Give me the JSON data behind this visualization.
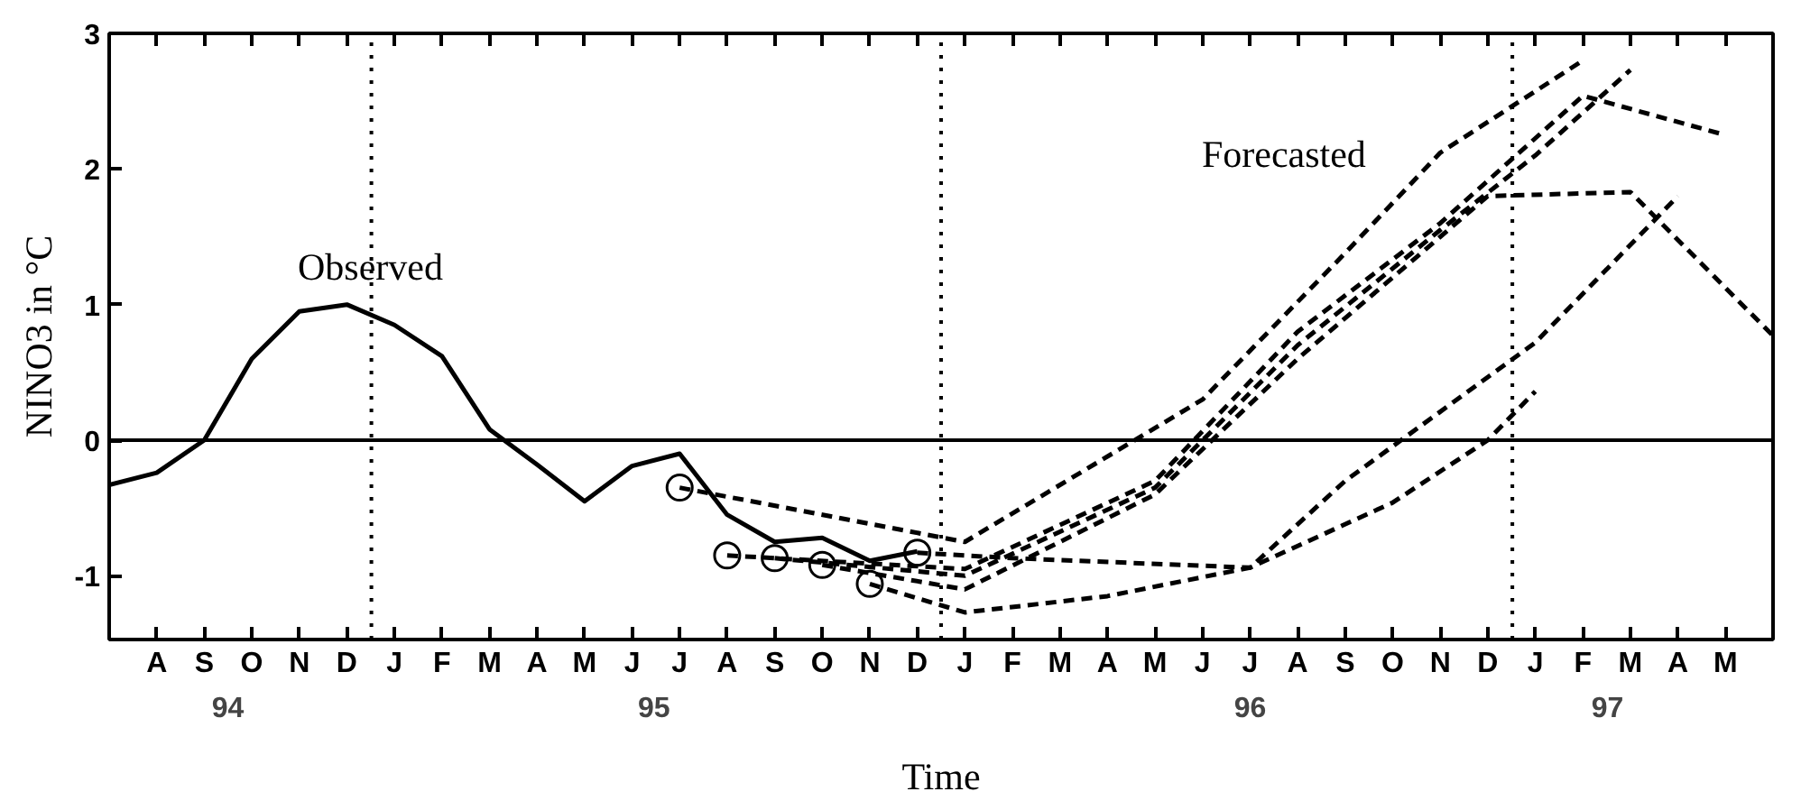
{
  "chart_data": {
    "type": "line",
    "xlabel": "Time",
    "ylabel": "NINO3 in °C",
    "categories": [
      null,
      "A",
      "S",
      "O",
      "N",
      "D",
      "J",
      "F",
      "M",
      "A",
      "M",
      "J",
      "J",
      "A",
      "S",
      "O",
      "N",
      "D",
      "J",
      "F",
      "M",
      "A",
      "M",
      "J",
      "J",
      "A",
      "S",
      "O",
      "N",
      "D",
      "J",
      "F",
      "M",
      "A",
      "M",
      null
    ],
    "ylim": [
      -1.47,
      3
    ],
    "x2lim": [
      "1994-07",
      "1997-06"
    ],
    "x2ticks": [
      {
        "value": "1994-09-15",
        "label": "94"
      },
      {
        "value": "1995-06-15",
        "label": "95"
      },
      {
        "value": "1996-07",
        "label": "96"
      },
      {
        "value": "1997-02-15",
        "label": "97"
      }
    ],
    "yticks": [
      -1,
      0,
      1,
      2,
      3
    ],
    "ref_lines": [
      {
        "axis": "y",
        "value": 0,
        "color": "#000000",
        "line_style": "solid"
      }
    ],
    "annotations": [
      "Observed",
      "Forecasted"
    ],
    "series": [
      {
        "color": "#000000",
        "line_style": "solid",
        "values": [
          -0.33,
          -0.24,
          0.0,
          0.6,
          0.95,
          1.0,
          0.85,
          0.62,
          0.08,
          -0.18,
          -0.45,
          -0.19,
          -0.1,
          -0.55,
          -0.75,
          -0.72,
          -0.89,
          -0.82,
          null,
          null,
          null,
          null,
          null,
          null,
          null,
          null,
          null,
          null,
          null,
          null,
          null,
          null,
          null,
          null,
          null,
          null
        ]
      },
      {
        "color": "#000000",
        "line_style": "dashed",
        "values": [
          null,
          null,
          null,
          null,
          null,
          null,
          null,
          null,
          null,
          null,
          null,
          null,
          -0.35,
          null,
          null,
          null,
          null,
          null,
          -0.75,
          null,
          null,
          null,
          null,
          0.3,
          null,
          null,
          1.38,
          null,
          2.12,
          null,
          null,
          2.8,
          null,
          null,
          null,
          null
        ]
      },
      {
        "color": "#000000",
        "line_style": "dashed",
        "values": [
          null,
          null,
          null,
          null,
          null,
          null,
          null,
          null,
          null,
          null,
          null,
          null,
          null,
          -0.85,
          null,
          null,
          null,
          null,
          -0.95,
          null,
          null,
          null,
          -0.3,
          null,
          null,
          0.8,
          null,
          null,
          1.6,
          null,
          null,
          2.54,
          null,
          null,
          2.25,
          null
        ]
      },
      {
        "color": "#000000",
        "line_style": "dashed",
        "values": [
          null,
          null,
          null,
          null,
          null,
          null,
          null,
          null,
          null,
          null,
          null,
          null,
          null,
          null,
          -0.87,
          null,
          null,
          null,
          -1.0,
          null,
          null,
          null,
          -0.35,
          null,
          null,
          0.7,
          null,
          null,
          1.55,
          null,
          2.1,
          null,
          2.73,
          null,
          null,
          null
        ]
      },
      {
        "color": "#000000",
        "line_style": "dashed",
        "values": [
          null,
          null,
          null,
          null,
          null,
          null,
          null,
          null,
          null,
          null,
          null,
          null,
          null,
          null,
          null,
          -0.92,
          null,
          null,
          -1.1,
          null,
          null,
          null,
          -0.4,
          null,
          null,
          0.6,
          null,
          null,
          1.5,
          1.8,
          null,
          null,
          1.83,
          null,
          null,
          0.77
        ]
      },
      {
        "color": "#000000",
        "line_style": "dashed",
        "values": [
          null,
          null,
          null,
          null,
          null,
          null,
          null,
          null,
          null,
          null,
          null,
          null,
          null,
          null,
          null,
          null,
          -1.06,
          null,
          -1.27,
          null,
          null,
          -1.15,
          null,
          null,
          -0.94,
          null,
          -0.3,
          null,
          null,
          null,
          0.72,
          null,
          null,
          1.8,
          null,
          null
        ]
      },
      {
        "color": "#000000",
        "line_style": "dashed",
        "values": [
          null,
          null,
          null,
          null,
          null,
          null,
          null,
          null,
          null,
          null,
          null,
          null,
          null,
          null,
          null,
          null,
          null,
          -0.83,
          null,
          -0.87,
          null,
          null,
          null,
          null,
          -0.94,
          null,
          null,
          -0.46,
          null,
          0.0,
          0.36,
          null,
          null,
          null,
          null,
          null
        ]
      },
      {
        "type": "scatter",
        "color": "#000000",
        "marker": "circle",
        "values": [
          null,
          null,
          null,
          null,
          null,
          null,
          null,
          null,
          null,
          null,
          null,
          null,
          -0.35,
          -0.85,
          -0.87,
          -0.92,
          -1.06,
          -0.83,
          null,
          null,
          null,
          null,
          null,
          null,
          null,
          null,
          null,
          null,
          null,
          null,
          null,
          null,
          null,
          null,
          null,
          null
        ]
      }
    ]
  }
}
